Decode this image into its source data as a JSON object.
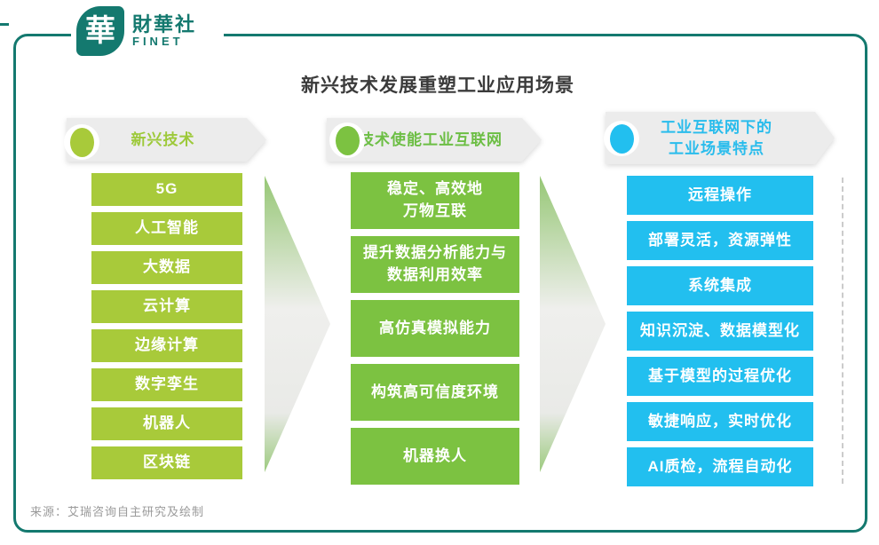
{
  "logo": {
    "glyph": "華",
    "name": "財華社",
    "subtitle": "FINET"
  },
  "title": "新兴技术发展重塑工业应用场景",
  "columns": [
    {
      "id": "emerging-technologies",
      "header_lines": [
        "新兴技术"
      ],
      "accent": "#A8CA3A",
      "header_color": "#9DC93A",
      "items": [
        "5G",
        "人工智能",
        "大数据",
        "云计算",
        "边缘计算",
        "数字孪生",
        "机器人",
        "区块链"
      ]
    },
    {
      "id": "tech-enabling-industrial-internet",
      "header_lines": [
        "技术使能工业互联网"
      ],
      "accent": "#7CC241",
      "header_color": "#6CBE44",
      "items": [
        [
          "稳定、高效地",
          "万物互联"
        ],
        [
          "提升数据分析能力与",
          "数据利用效率"
        ],
        [
          "高仿真模拟能力"
        ],
        [
          "构筑高可信度环境"
        ],
        [
          "机器换人"
        ]
      ]
    },
    {
      "id": "industrial-scenario-features",
      "header_lines": [
        "工业互联网下的",
        "工业场景特点"
      ],
      "accent": "#22BFEF",
      "header_color": "#29BCEC",
      "items": [
        "远程操作",
        "部署灵活，资源弹性",
        "系统集成",
        "知识沉淀、数据模型化",
        "基于模型的过程优化",
        "敏捷响应，实时优化",
        "AI质检，流程自动化"
      ]
    }
  ],
  "source": "来源：艾瑞咨询自主研究及绘制",
  "colors": {
    "brand_teal": "#14796F",
    "banner_gray": "#ECECEC",
    "title_text": "#3B3B3B",
    "column1_green": "#A8CA3A",
    "column2_green": "#7CC241",
    "column3_cyan": "#22BFEF",
    "arrow_gradient_green": "#96C775",
    "source_text": "#9A9A9A"
  }
}
